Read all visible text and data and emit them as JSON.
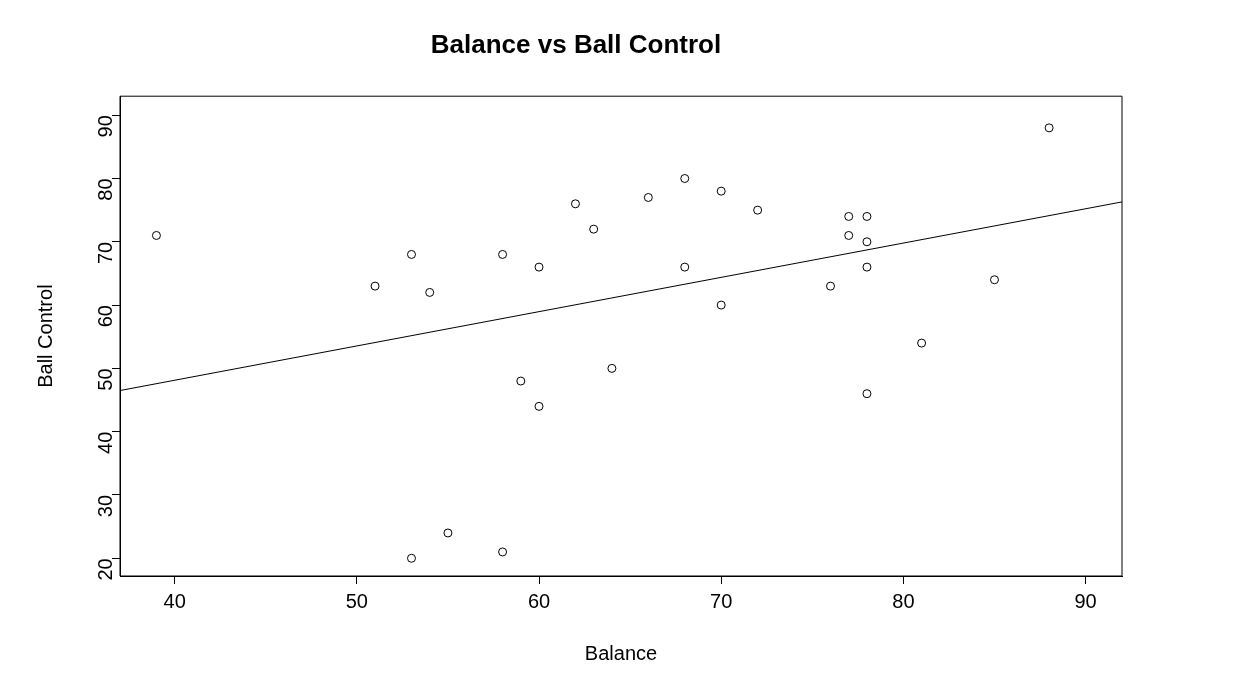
{
  "chart_data": {
    "type": "scatter",
    "title": "Balance vs Ball Control",
    "xlabel": "Balance",
    "ylabel": "Ball Control",
    "xlim": [
      37,
      92
    ],
    "xticks": [
      40,
      50,
      60,
      70,
      80,
      90
    ],
    "ylim": [
      17.2,
      93
    ],
    "yticks": [
      20,
      30,
      40,
      50,
      60,
      70,
      80,
      90
    ],
    "grid": false,
    "legend": false,
    "marker": "circle",
    "series": [
      {
        "color": "#000000",
        "x": [
          39,
          51,
          53,
          54,
          53,
          55,
          58,
          58,
          59,
          60,
          60,
          62,
          63,
          64,
          66,
          68,
          68,
          70,
          70,
          72,
          76,
          77,
          77,
          78,
          78,
          78,
          78,
          81,
          85,
          88
        ],
        "values": [
          71,
          63,
          68,
          62,
          20,
          24,
          68,
          21,
          48,
          66,
          44,
          76,
          72,
          50,
          77,
          80,
          66,
          78,
          60,
          75,
          63,
          74,
          71,
          74,
          70,
          66,
          46,
          54,
          64,
          88
        ]
      },
      {
        "type": "line",
        "marker": "none",
        "color": "#000000",
        "x": [
          37,
          92
        ],
        "values": [
          46.5,
          76.3
        ]
      }
    ]
  }
}
